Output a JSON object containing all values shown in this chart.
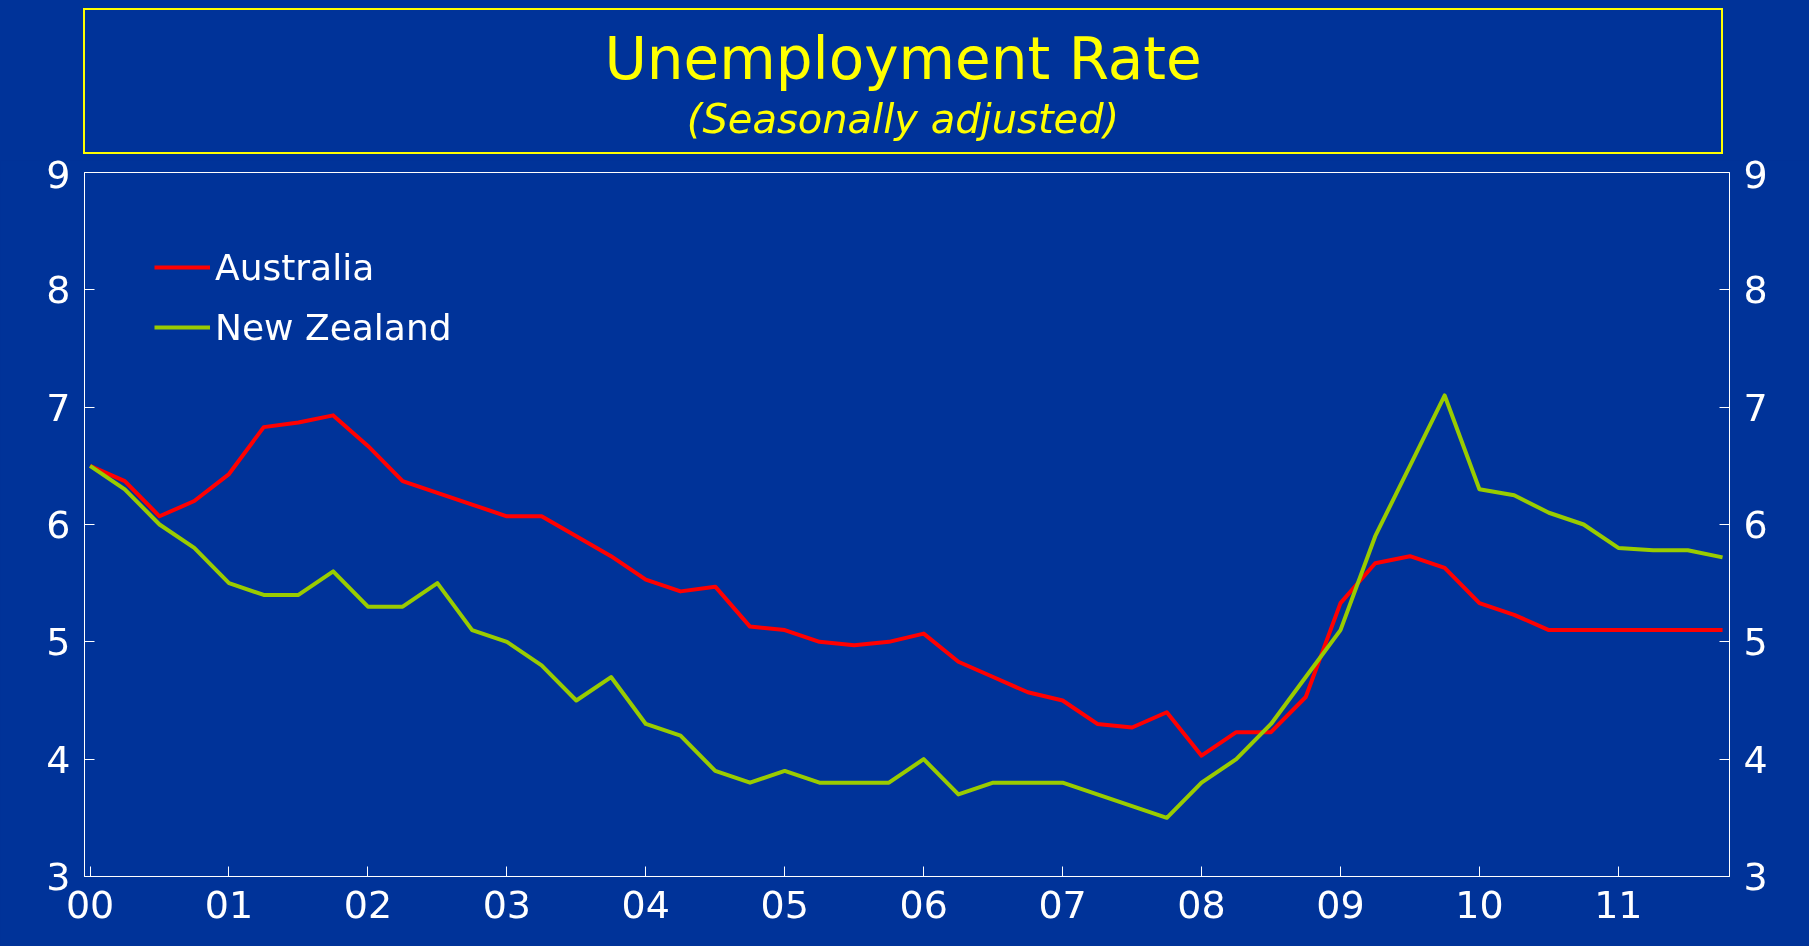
{
  "chart_data": {
    "type": "line",
    "title": "Unemployment Rate",
    "subtitle": "(Seasonally adjusted)",
    "x": [
      2000,
      2000.25,
      2000.5,
      2000.75,
      2001,
      2001.25,
      2001.5,
      2001.75,
      2002,
      2002.25,
      2002.5,
      2002.75,
      2003,
      2003.25,
      2003.5,
      2003.75,
      2004,
      2004.25,
      2004.5,
      2004.75,
      2005,
      2005.25,
      2005.5,
      2005.75,
      2006,
      2006.25,
      2006.5,
      2006.75,
      2007,
      2007.25,
      2007.5,
      2007.75,
      2008,
      2008.25,
      2008.5,
      2008.75,
      2009,
      2009.25,
      2009.5,
      2009.75,
      2010,
      2010.25,
      2010.5,
      2010.75,
      2011,
      2011.25,
      2011.5,
      2011.75
    ],
    "series": [
      {
        "name": "Australia",
        "color": "#ff0000",
        "values": [
          6.5,
          6.37,
          6.07,
          6.2,
          6.43,
          6.83,
          6.87,
          6.93,
          6.67,
          6.37,
          6.27,
          6.17,
          6.07,
          6.07,
          5.9,
          5.73,
          5.53,
          5.43,
          5.47,
          5.13,
          5.1,
          5.0,
          4.97,
          5.0,
          5.07,
          4.83,
          4.7,
          4.57,
          4.5,
          4.3,
          4.27,
          4.4,
          4.03,
          4.23,
          4.23,
          4.53,
          5.33,
          5.67,
          5.73,
          5.63,
          5.33,
          5.23,
          5.1,
          5.1,
          5.1,
          5.1,
          5.1,
          5.1
        ]
      },
      {
        "name": "New Zealand",
        "color": "#99cc00",
        "values": [
          6.5,
          6.3,
          6.0,
          5.8,
          5.5,
          5.4,
          5.4,
          5.6,
          5.3,
          5.3,
          5.5,
          5.1,
          5.0,
          4.8,
          4.5,
          4.7,
          4.3,
          4.2,
          3.9,
          3.8,
          3.9,
          3.8,
          3.8,
          3.8,
          4.0,
          3.7,
          3.8,
          3.8,
          3.8,
          3.7,
          3.6,
          3.5,
          3.8,
          4.0,
          4.3,
          4.7,
          5.1,
          5.9,
          6.5,
          7.1,
          6.3,
          6.25,
          6.1,
          6.0,
          5.8,
          5.78,
          5.78,
          5.72
        ]
      }
    ],
    "xlim": [
      1999.96,
      2011.8
    ],
    "xticks": [
      {
        "value": 2000,
        "label": "00"
      },
      {
        "value": 2001,
        "label": "01"
      },
      {
        "value": 2002,
        "label": "02"
      },
      {
        "value": 2003,
        "label": "03"
      },
      {
        "value": 2004,
        "label": "04"
      },
      {
        "value": 2005,
        "label": "05"
      },
      {
        "value": 2006,
        "label": "06"
      },
      {
        "value": 2007,
        "label": "07"
      },
      {
        "value": 2008,
        "label": "08"
      },
      {
        "value": 2009,
        "label": "09"
      },
      {
        "value": 2010,
        "label": "10"
      },
      {
        "value": 2011,
        "label": "11"
      }
    ],
    "ylim": [
      3,
      9
    ],
    "yticks": [
      3,
      4,
      5,
      6,
      7,
      8,
      9
    ],
    "y2lim": [
      3,
      9
    ],
    "y2ticks": [
      3,
      4,
      5,
      6,
      7,
      8,
      9
    ],
    "grid": false,
    "legend": "top left",
    "marker": "none",
    "line_style": "solid"
  }
}
